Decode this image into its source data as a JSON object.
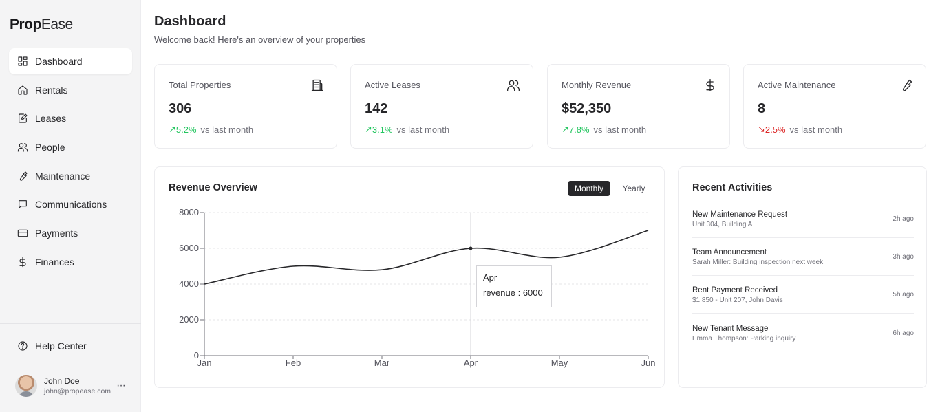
{
  "brand": {
    "bold": "Prop",
    "light": "Ease"
  },
  "sidebar": {
    "items": [
      {
        "label": "Dashboard",
        "icon": "dashboard-icon"
      },
      {
        "label": "Rentals",
        "icon": "home-icon"
      },
      {
        "label": "Leases",
        "icon": "document-edit-icon"
      },
      {
        "label": "People",
        "icon": "users-icon"
      },
      {
        "label": "Maintenance",
        "icon": "wrench-icon"
      },
      {
        "label": "Communications",
        "icon": "message-icon"
      },
      {
        "label": "Payments",
        "icon": "credit-card-icon"
      },
      {
        "label": "Finances",
        "icon": "dollar-icon"
      }
    ],
    "active": "Dashboard",
    "help_label": "Help Center",
    "user": {
      "name": "John Doe",
      "email": "john@propease.com",
      "more": "···"
    }
  },
  "header": {
    "title": "Dashboard",
    "subtitle": "Welcome back! Here's an overview of your properties"
  },
  "stats": [
    {
      "label": "Total Properties",
      "value": "306",
      "arrow": "↗",
      "change": "5.2%",
      "trend": "up",
      "vs": "vs last month",
      "icon": "building-icon"
    },
    {
      "label": "Active Leases",
      "value": "142",
      "arrow": "↗",
      "change": "3.1%",
      "trend": "up",
      "vs": "vs last month",
      "icon": "users-icon"
    },
    {
      "label": "Monthly Revenue",
      "value": "$52,350",
      "arrow": "↗",
      "change": "7.8%",
      "trend": "up",
      "vs": "vs last month",
      "icon": "dollar-icon"
    },
    {
      "label": "Active Maintenance",
      "value": "8",
      "arrow": "↘",
      "change": "2.5%",
      "trend": "down",
      "vs": "vs last month",
      "icon": "wrench-icon"
    }
  ],
  "revenue": {
    "title": "Revenue Overview",
    "toggle_monthly": "Monthly",
    "toggle_yearly": "Yearly",
    "active_toggle": "Monthly",
    "tooltip": {
      "label": "Apr",
      "text": "revenue : 6000"
    }
  },
  "chart_data": {
    "type": "line",
    "categories": [
      "Jan",
      "Feb",
      "Mar",
      "Apr",
      "May",
      "Jun"
    ],
    "series": [
      {
        "values": [
          4000,
          5000,
          4800,
          6000,
          5500,
          7000
        ]
      }
    ],
    "yticks": [
      0,
      2000,
      4000,
      6000,
      8000
    ],
    "ylim": [
      0,
      8000
    ],
    "grid": true,
    "highlight_index": 3,
    "line_color": "#27272a"
  },
  "activities": {
    "title": "Recent Activities",
    "items": [
      {
        "title": "New Maintenance Request",
        "sub": "Unit 304, Building A",
        "time": "2h ago"
      },
      {
        "title": "Team Announcement",
        "sub": "Sarah Miller: Building inspection next week",
        "time": "3h ago"
      },
      {
        "title": "Rent Payment Received",
        "sub": "$1,850 - Unit 207, John Davis",
        "time": "5h ago"
      },
      {
        "title": "New Tenant Message",
        "sub": "Emma Thompson: Parking inquiry",
        "time": "6h ago"
      }
    ]
  },
  "colors": {
    "up": "#22c55e",
    "down": "#dc2626",
    "accent": "#27272a"
  }
}
